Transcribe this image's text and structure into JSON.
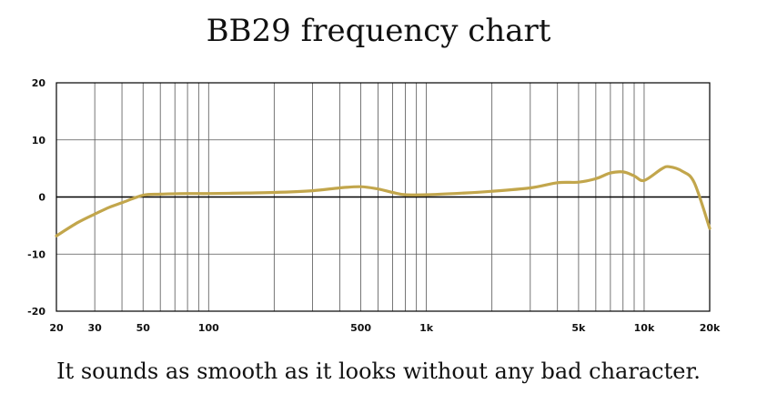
{
  "title": "BB29 frequency chart",
  "caption": "It sounds as smooth as it looks without any bad character.",
  "colors": {
    "curve": "#c2a64c",
    "grid": "#555555",
    "axis": "#000000"
  },
  "chart_data": {
    "type": "line",
    "title": "BB29 frequency chart",
    "xlabel": "",
    "ylabel": "",
    "xscale": "log",
    "xlim": [
      20,
      20000
    ],
    "ylim": [
      -20,
      20
    ],
    "grid": true,
    "x_tick_labels": [
      {
        "value": 20,
        "label": "20"
      },
      {
        "value": 30,
        "label": "30"
      },
      {
        "value": 50,
        "label": "50"
      },
      {
        "value": 100,
        "label": "100"
      },
      {
        "value": 500,
        "label": "500"
      },
      {
        "value": 1000,
        "label": "1k"
      },
      {
        "value": 5000,
        "label": "5k"
      },
      {
        "value": 10000,
        "label": "10k"
      },
      {
        "value": 20000,
        "label": "20k"
      }
    ],
    "y_tick_labels": [
      {
        "value": 20,
        "label": "20"
      },
      {
        "value": 10,
        "label": "10"
      },
      {
        "value": 0,
        "label": "0"
      },
      {
        "value": -10,
        "label": "-10"
      },
      {
        "value": -20,
        "label": "-20"
      }
    ],
    "series": [
      {
        "x": [
          20,
          25,
          30,
          35,
          40,
          50,
          60,
          80,
          100,
          150,
          200,
          300,
          400,
          500,
          600,
          700,
          800,
          1000,
          1500,
          2000,
          3000,
          4000,
          5000,
          6000,
          7000,
          8000,
          9000,
          10000,
          12000,
          13000,
          15000,
          17000,
          20000
        ],
        "y": [
          -6.8,
          -4.5,
          -3.0,
          -1.8,
          -1.0,
          0.3,
          0.5,
          0.6,
          0.6,
          0.7,
          0.8,
          1.1,
          1.6,
          1.8,
          1.4,
          0.8,
          0.4,
          0.4,
          0.7,
          1.0,
          1.6,
          2.5,
          2.6,
          3.2,
          4.2,
          4.4,
          3.7,
          2.9,
          4.9,
          5.3,
          4.5,
          2.5,
          -5.5
        ]
      }
    ]
  }
}
